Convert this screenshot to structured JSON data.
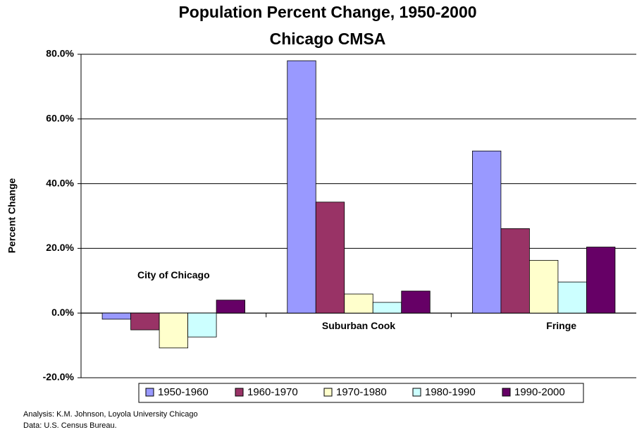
{
  "chart_data": {
    "type": "bar",
    "title": "Population Percent Change, 1950-2000",
    "subtitle": "Chicago CMSA",
    "y_label": "Percent Change",
    "categories": [
      "City of Chicago",
      "Suburban Cook",
      "Fringe"
    ],
    "series": [
      {
        "name": "1950-1960",
        "color": "#9999ff",
        "values": [
          -1.9,
          78.0,
          50.1
        ]
      },
      {
        "name": "1960-1970",
        "color": "#993366",
        "values": [
          -5.2,
          34.3,
          26.1
        ]
      },
      {
        "name": "1970-1980",
        "color": "#ffffcc",
        "values": [
          -10.8,
          5.9,
          16.3
        ]
      },
      {
        "name": "1980-1990",
        "color": "#ccffff",
        "values": [
          -7.4,
          3.3,
          9.6
        ]
      },
      {
        "name": "1990-2000",
        "color": "#660066",
        "values": [
          4.0,
          6.8,
          20.4
        ]
      }
    ],
    "ylim": [
      -20,
      80
    ],
    "yticks": [
      {
        "value": -20,
        "label": "-20.0%"
      },
      {
        "value": 0,
        "label": "0.0%"
      },
      {
        "value": 20,
        "label": "20.0%"
      },
      {
        "value": 40,
        "label": "40.0%"
      },
      {
        "value": 60,
        "label": "60.0%"
      },
      {
        "value": 80,
        "label": "80.0%"
      }
    ],
    "grid": true,
    "legend": "bottom",
    "footnotes": [
      "Analysis: K.M. Johnson, Loyola University Chicago",
      "Data: U.S. Census Bureau."
    ]
  }
}
